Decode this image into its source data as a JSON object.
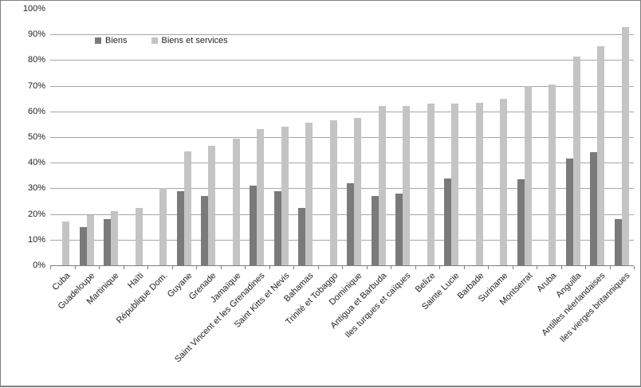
{
  "chart_data": {
    "type": "bar",
    "title": "",
    "xlabel": "",
    "ylabel": "",
    "grid": true,
    "legend_position": "top-inside",
    "categories": [
      "Cuba",
      "Guadeloupe",
      "Martinique",
      "Haïti",
      "République Dom.",
      "Guyane",
      "Grenade",
      "Jamaïque",
      "Saint Vincent et les Grenadines",
      "Saint Kitts et Nevis",
      "Bahamas",
      "Trinité et Tobaggo",
      "Dominique",
      "Antigua et Barbuda",
      "Iles turques et caïques",
      "Belize",
      "Sainte Lucie",
      "Barbade",
      "Suriname",
      "Montserrat",
      "Aruba",
      "Anguilla",
      "Antilles néerlandaises",
      "Iles vierges britanniques"
    ],
    "series": [
      {
        "name": "Biens",
        "color": "#7a7a7a",
        "values": [
          null,
          15,
          18,
          null,
          null,
          29,
          27,
          null,
          31,
          29,
          22.5,
          null,
          32,
          27,
          28,
          null,
          34,
          null,
          null,
          33.5,
          null,
          41.5,
          44,
          18
        ]
      },
      {
        "name": "Biens et services",
        "color": "#c4c4c4",
        "values": [
          17,
          19.5,
          21,
          22.5,
          30,
          44.5,
          46.5,
          49.5,
          53,
          54,
          55.5,
          56.5,
          57.5,
          62,
          62,
          63,
          63,
          63.5,
          65,
          70,
          70.5,
          81.5,
          85.5,
          93
        ]
      }
    ],
    "y_axis": {
      "min": 0,
      "max": 100,
      "step": 10,
      "tick_labels": [
        "0%",
        "10%",
        "20%",
        "30%",
        "40%",
        "50%",
        "60%",
        "70%",
        "80%",
        "90%",
        "100%"
      ]
    },
    "colors": {
      "gridline": "#a6a6a6",
      "axis": "#7f7f7f",
      "text": "#1f1f1f",
      "frame_border": "#7f7f7f",
      "background": "#ffffff"
    }
  }
}
